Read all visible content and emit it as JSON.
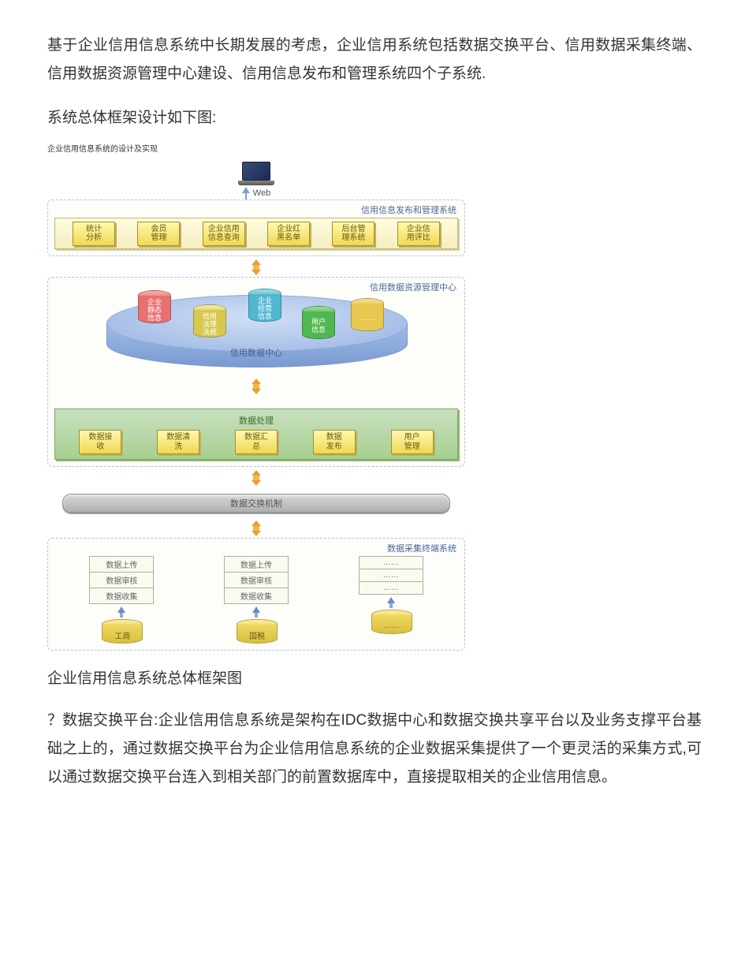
{
  "para1": "基于企业信用信息系统中长期发展的考虑，企业信用系统包括数据交换平台、信用数据采集终端、信用数据资源管理中心建设、信用信息发布和管理系统四个子系统.",
  "sub_title": "系统总体框架设计如下图:",
  "tiny_caption": "企业信用信息系统的设计及实现",
  "diagram": {
    "web_label": "Web",
    "layer1": {
      "title": "信用信息发布和管理系统",
      "buttons": [
        "统计\n分析",
        "会员\n管理",
        "企业信用\n信息查询",
        "企业红\n黑名单",
        "后台管\n理系统",
        "企业信\n用评比"
      ]
    },
    "layer2": {
      "title": "信用数据资源管理中心",
      "platter_label": "信用数据中心",
      "dbs": [
        {
          "label": "企业\n静态\n信息",
          "color_top": "#f8b0b0",
          "color_body": "#e87070"
        },
        {
          "label": "信用\n法律\n法规",
          "color_top": "#f8f0b0",
          "color_body": "#d8c850"
        },
        {
          "label": "企业\n经营\n信息",
          "color_top": "#a0e0e8",
          "color_body": "#50b8d0"
        },
        {
          "label": "用户\n信息",
          "color_top": "#a0e0a0",
          "color_body": "#50b850"
        },
        {
          "label": "……",
          "color_top": "#f8e090",
          "color_body": "#e8c850"
        }
      ],
      "proc_title": "数据处理",
      "proc_buttons": [
        "数据接\n收",
        "数据清\n洗",
        "数据汇\n总",
        "数据\n发布",
        "用户\n管理"
      ]
    },
    "mech_label": "数据交换机制",
    "layer3": {
      "title": "数据采集终端系统",
      "cols": [
        {
          "rows": [
            "数据上传",
            "数据审核",
            "数据收集"
          ],
          "src": "工商"
        },
        {
          "rows": [
            "数据上传",
            "数据审核",
            "数据收集"
          ],
          "src": "国税"
        },
        {
          "rows": [
            "……",
            "……",
            "……"
          ],
          "src": "……"
        }
      ]
    }
  },
  "fig_caption": "企业信用信息系统总体框架图",
  "para2": "？数据交换平台:企业信用信息系统是架构在IDC数据中心和数据交换共享平台以及业务支撑平台基础之上的，通过数据交换平台为企业信用信息系统的企业数据采集提供了一个更灵活的采集方式,可以通过数据交换平台连入到相关部门的前置数据库中，直接提取相关的企业信用信息。",
  "colors": {
    "dash_border": "#b0c4de",
    "btn_bg": "#f0d850",
    "platter": "#a8c0e8",
    "proc_bg": "#a8d090",
    "mech_bg": "#b8b8b8"
  }
}
